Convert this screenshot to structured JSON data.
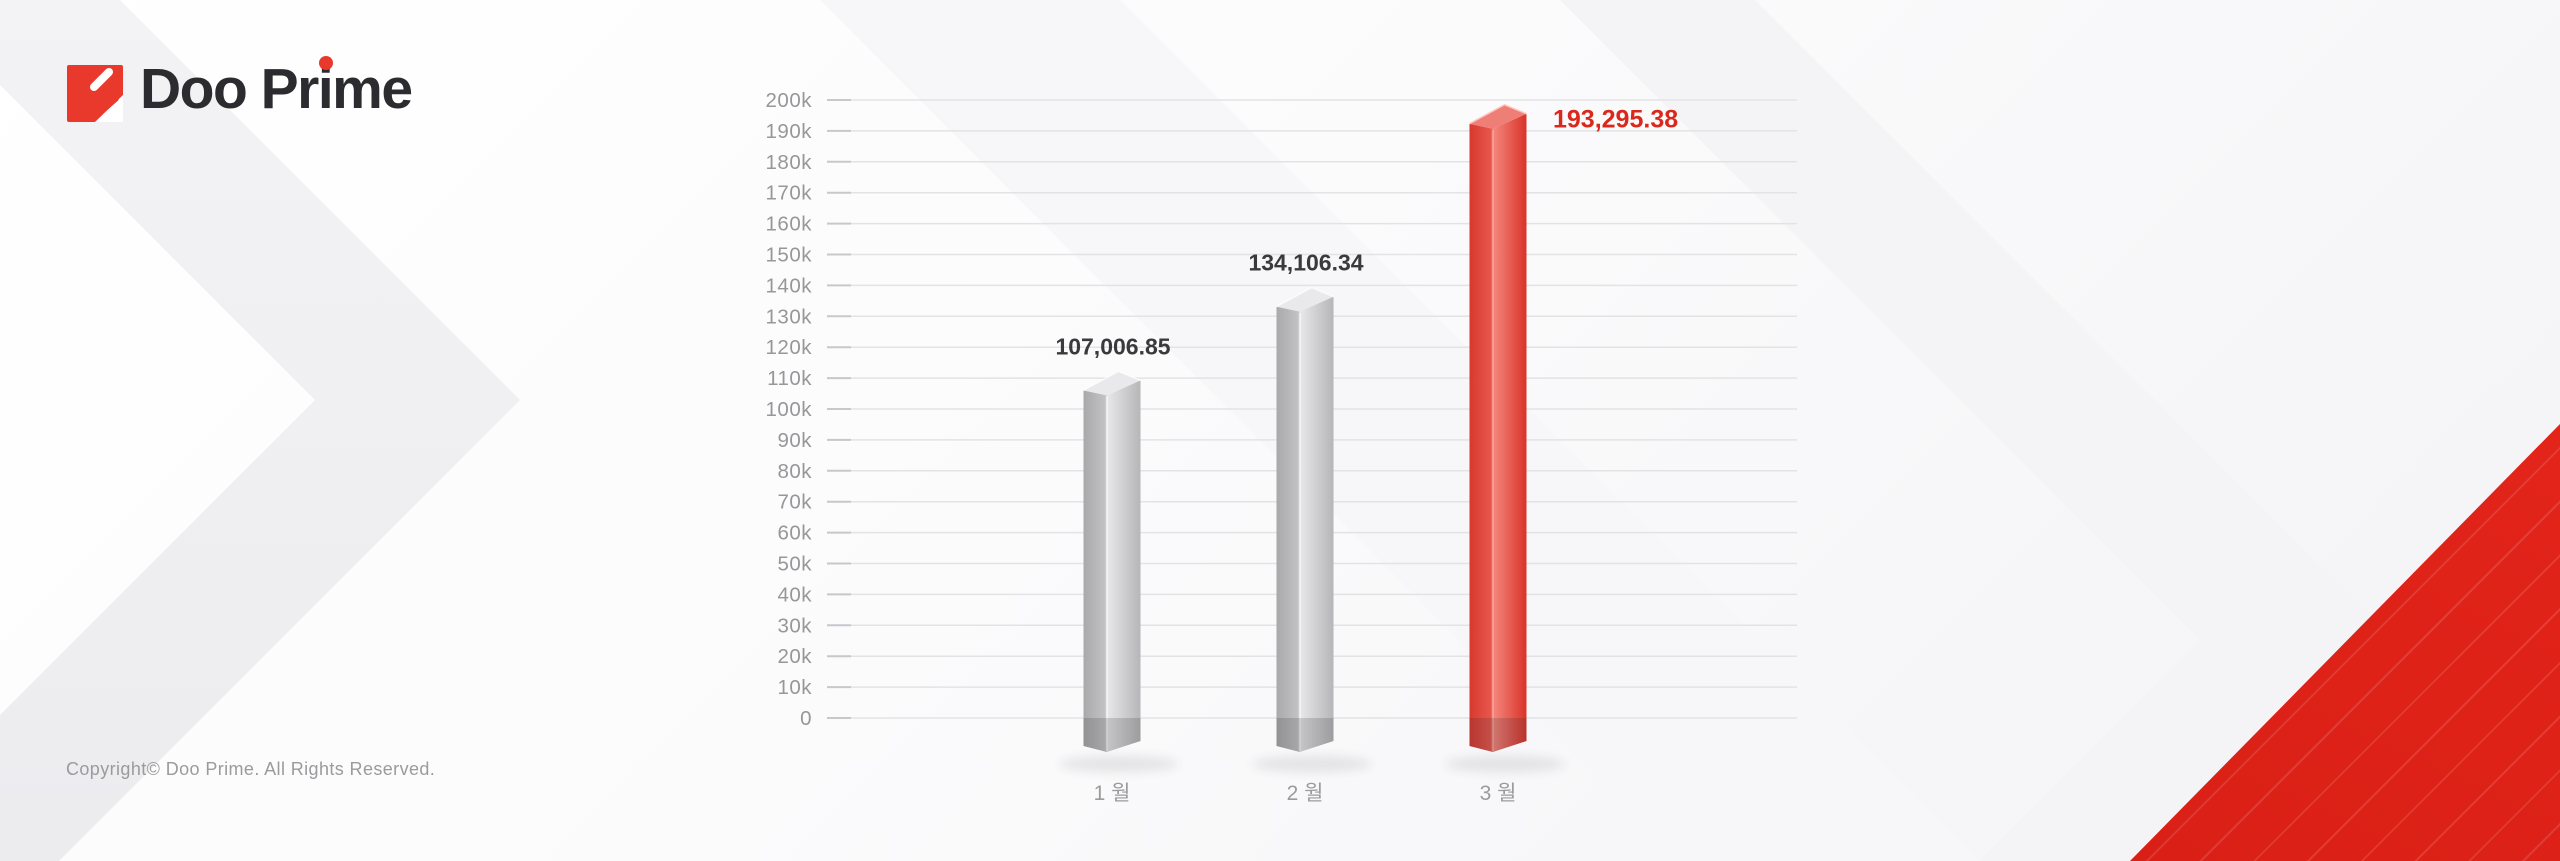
{
  "brand": {
    "logo_text": "Doo Prime",
    "logo_icon": "doo-prime-arrow-icon",
    "logo_red": "#e8392c",
    "logo_text_color": "#2c2b2f"
  },
  "footer": {
    "copyright": "Copyright© Doo Prime. All Rights Reserved."
  },
  "decor": {
    "corner_red": "#df231b",
    "background_chevron_gray": "#f1f1f4"
  },
  "chart_data": {
    "type": "bar",
    "title": "",
    "xlabel": "",
    "ylabel": "",
    "categories": [
      "1 월",
      "2 월",
      "3 월"
    ],
    "values": [
      107006.85,
      134106.34,
      193295.38
    ],
    "value_labels": [
      "107,006.85",
      "134,106.34",
      "193,295.38"
    ],
    "highlight_index": 2,
    "ylim": [
      0,
      200000
    ],
    "y_tick_step": 10000,
    "y_tick_labels": [
      "0",
      "10k",
      "20k",
      "30k",
      "40k",
      "50k",
      "60k",
      "70k",
      "80k",
      "90k",
      "100k",
      "110k",
      "120k",
      "130k",
      "140k",
      "150k",
      "160k",
      "170k",
      "180k",
      "190k",
      "200k"
    ],
    "grid": true,
    "legend": null,
    "styles": {
      "default": {
        "left": [
          "#a9a9ab",
          "#c4c4c6"
        ],
        "right": [
          "#e8e8ea",
          "#b6b6b8"
        ],
        "top": "#e9e9eb",
        "topEdge": "rgba(255,255,255,0.65)",
        "ridge": "rgba(255,255,255,0.55)",
        "label": "#3a393d"
      },
      "highlight": {
        "left": [
          "#d8382f",
          "#e85a50"
        ],
        "right": [
          "#f4887e",
          "#d93329"
        ],
        "top": "#ef7e76",
        "topEdge": "rgba(255,200,194,0.9)",
        "ridge": "rgba(255,175,165,0.6)",
        "label": "#da291c"
      }
    },
    "axis_colors": {
      "gridline": "#e3e3e6",
      "tick": "#c8c8cb",
      "tick_label": "#97979a",
      "category_label": "#9b9b9d"
    }
  }
}
